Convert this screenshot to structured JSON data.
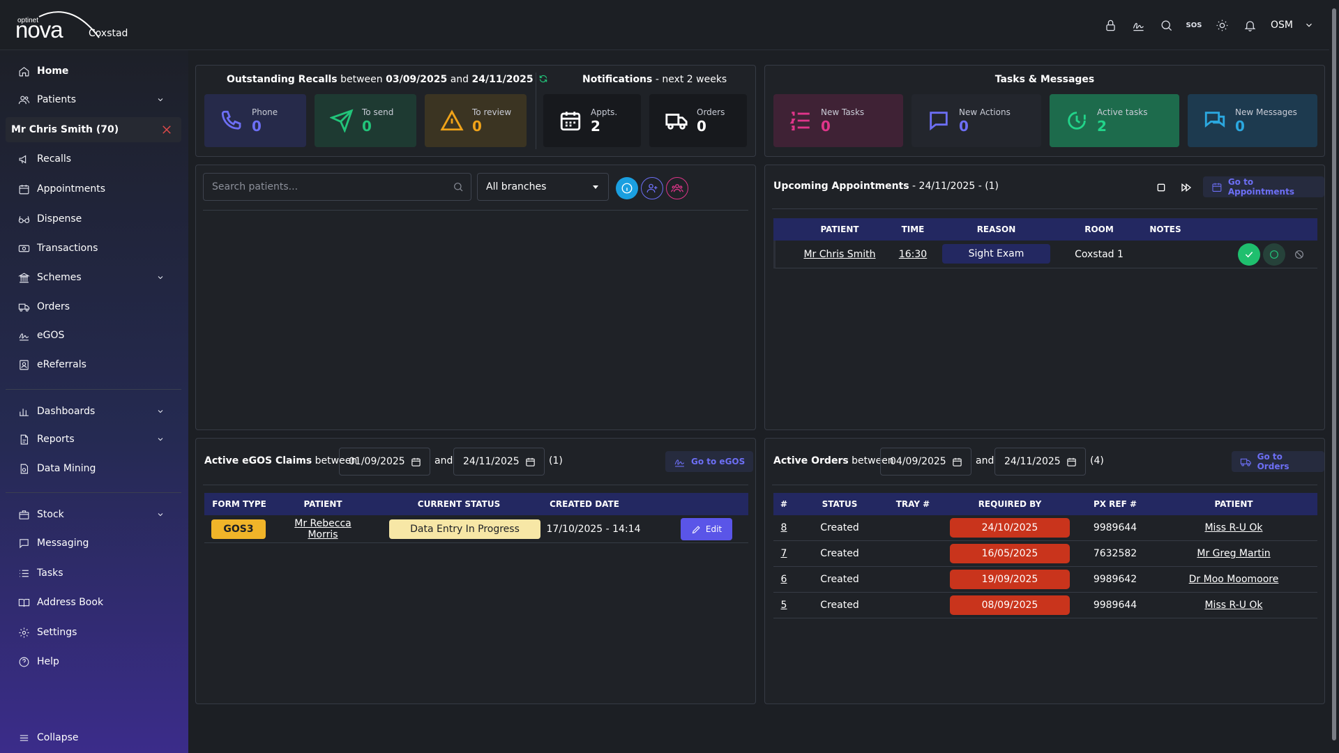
{
  "app": {
    "logo_small": "optinet",
    "logo_big": "nova",
    "branch": "Coxstad",
    "user": "OSM",
    "sos": "SOS"
  },
  "sidebar": {
    "home": "Home",
    "patients": "Patients",
    "current_patient": "Mr Chris Smith (70)",
    "recalls": "Recalls",
    "appointments": "Appointments",
    "dispense": "Dispense",
    "transactions": "Transactions",
    "schemes": "Schemes",
    "orders": "Orders",
    "egos": "eGOS",
    "ereferrals": "eReferrals",
    "dashboards": "Dashboards",
    "reports": "Reports",
    "data_mining": "Data Mining",
    "stock": "Stock",
    "messaging": "Messaging",
    "tasks": "Tasks",
    "address_book": "Address Book",
    "settings": "Settings",
    "help": "Help",
    "collapse": "Collapse"
  },
  "recalls": {
    "title_bold": "Outstanding Recalls",
    "between": "between",
    "start": "03/09/2025",
    "and": "and",
    "end": "24/11/2025",
    "cards": [
      {
        "label": "Phone",
        "value": "0",
        "color": "#6d6ff5"
      },
      {
        "label": "To send",
        "value": "0",
        "color": "#22c47a"
      },
      {
        "label": "To review",
        "value": "0",
        "color": "#f0a319"
      }
    ]
  },
  "notifications": {
    "title_bold": "Notifications",
    "title_rest": "- next 2 weeks",
    "cards": [
      {
        "label": "Appts.",
        "value": "2"
      },
      {
        "label": "Orders",
        "value": "0"
      }
    ]
  },
  "tasks_messages": {
    "title": "Tasks & Messages",
    "cards": [
      {
        "label": "New Tasks",
        "value": "0",
        "color": "#e0358a"
      },
      {
        "label": "New Actions",
        "value": "0",
        "color": "#6d6ff5"
      },
      {
        "label": "Active tasks",
        "value": "2",
        "color": "#22c47a"
      },
      {
        "label": "New Messages",
        "value": "0",
        "color": "#2ba8e0"
      }
    ]
  },
  "patient_search": {
    "placeholder": "Search patients...",
    "branch": "All branches"
  },
  "upcoming": {
    "title_bold": "Upcoming Appointments",
    "title_rest": "- 24/11/2025 - (1)",
    "go_label": "Go to Appointments",
    "headers": [
      "PATIENT",
      "TIME",
      "REASON",
      "ROOM",
      "NOTES"
    ],
    "rows": [
      {
        "patient": "Mr Chris Smith",
        "time": "16:30",
        "reason": "Sight Exam",
        "room": "Coxstad 1"
      }
    ]
  },
  "egos": {
    "title_bold": "Active eGOS Claims",
    "between": "between",
    "start": "01/09/2025",
    "and": "and",
    "end": "24/11/2025",
    "count": "(1)",
    "go_label": "Go to eGOS",
    "headers": [
      "FORM TYPE",
      "PATIENT",
      "CURRENT STATUS",
      "CREATED DATE"
    ],
    "rows": [
      {
        "form_type": "GOS3",
        "patient": "Mr Rebecca Morris",
        "status": "Data Entry In Progress",
        "created": "17/10/2025 - 14:14",
        "action": "Edit"
      }
    ]
  },
  "orders": {
    "title_bold": "Active Orders",
    "between": "between",
    "start": "04/09/2025",
    "and": "and",
    "end": "24/11/2025",
    "count": "(4)",
    "go_label": "Go to Orders",
    "headers": [
      "#",
      "STATUS",
      "TRAY #",
      "REQUIRED BY",
      "PX REF #",
      "PATIENT"
    ],
    "rows": [
      {
        "num": "8",
        "status": "Created",
        "tray": "",
        "required": "24/10/2025",
        "pxref": "9989644",
        "patient": "Miss R-U Ok"
      },
      {
        "num": "7",
        "status": "Created",
        "tray": "",
        "required": "16/05/2025",
        "pxref": "7632582",
        "patient": "Mr Greg Martin"
      },
      {
        "num": "6",
        "status": "Created",
        "tray": "",
        "required": "19/09/2025",
        "pxref": "9989642",
        "patient": "Dr Moo Moomoore"
      },
      {
        "num": "5",
        "status": "Created",
        "tray": "",
        "required": "08/09/2025",
        "pxref": "9989644",
        "patient": "Miss R-U Ok"
      }
    ]
  }
}
